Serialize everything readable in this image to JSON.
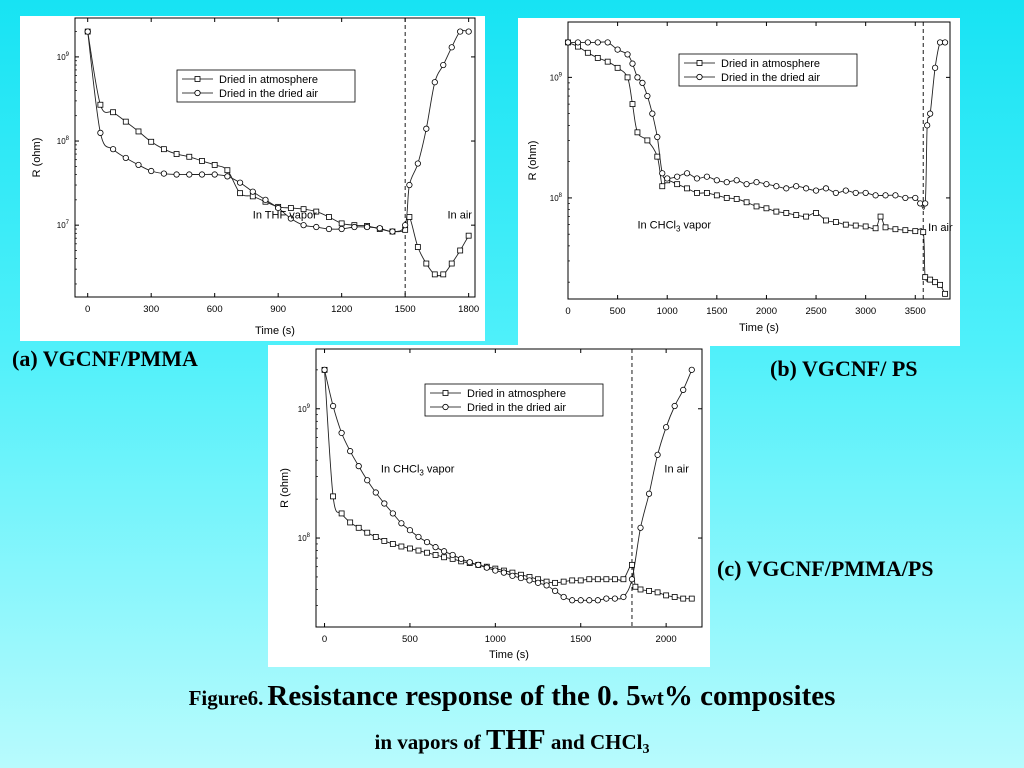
{
  "charts": {
    "a": {
      "label": "(a) VGCNF/PMMA"
    },
    "b": {
      "label": "(b) VGCNF/ PS"
    },
    "c": {
      "label": "(c) VGCNF/PMMA/PS"
    }
  },
  "caption": {
    "part1": "Figure6.",
    "part2": "Resistance response of the 0. 5",
    "part3": "wt",
    "part4": "% composites",
    "line2_part1": "in vapors of ",
    "line2_part2": "THF",
    "line2_part3": " and CHCl",
    "line2_sub": "3"
  },
  "chart_data": [
    {
      "type": "line",
      "id": "a",
      "title": "",
      "xlabel": "Time (s)",
      "ylabel": "R (ohm)",
      "y_scale": "log",
      "xlim": [
        -60,
        1830
      ],
      "ylim": [
        1400000.0,
        2900000000.0
      ],
      "xticks": [
        0,
        300,
        600,
        900,
        1200,
        1500,
        1800
      ],
      "yticks": [
        {
          "value": 10000000.0,
          "base": "10",
          "exp": "7"
        },
        {
          "value": 100000000.0,
          "base": "10",
          "exp": "8"
        },
        {
          "value": 1000000000.0,
          "base": "10",
          "exp": "9"
        }
      ],
      "vline": 1500,
      "annotations": [
        {
          "text": "In THF vapor",
          "x": 780,
          "y": 12000000.0
        },
        {
          "text": "In air",
          "x": 1700,
          "y": 12000000.0
        }
      ],
      "legend_position": "top-right",
      "series": [
        {
          "name": "Dried in atmosphere",
          "marker": "square",
          "x": [
            0,
            60,
            120,
            180,
            240,
            300,
            360,
            420,
            480,
            540,
            600,
            660,
            720,
            780,
            840,
            900,
            960,
            1020,
            1080,
            1140,
            1200,
            1260,
            1320,
            1380,
            1440,
            1500,
            1520,
            1560,
            1600,
            1640,
            1680,
            1720,
            1760,
            1800
          ],
          "y": [
            2000000000.0,
            270000000.0,
            220000000.0,
            170000000.0,
            130000000.0,
            98000000.0,
            80000000.0,
            70000000.0,
            65000000.0,
            58000000.0,
            52000000.0,
            45000000.0,
            24000000.0,
            22000000.0,
            19000000.0,
            16500000.0,
            16000000.0,
            15500000.0,
            14500000.0,
            12500000.0,
            10500000.0,
            10000000.0,
            9800000.0,
            9000000.0,
            8400000.0,
            8800000.0,
            12500000.0,
            5500000.0,
            3500000.0,
            2600000.0,
            2600000.0,
            3500000.0,
            5000000.0,
            7500000.0
          ]
        },
        {
          "name": "Dried in the dried air",
          "marker": "circle",
          "x": [
            0,
            60,
            120,
            180,
            240,
            300,
            360,
            420,
            480,
            540,
            600,
            660,
            720,
            780,
            840,
            900,
            960,
            1020,
            1080,
            1140,
            1200,
            1260,
            1320,
            1380,
            1440,
            1500,
            1520,
            1560,
            1600,
            1640,
            1680,
            1720,
            1760,
            1800
          ],
          "y": [
            2000000000.0,
            125000000.0,
            80000000.0,
            63000000.0,
            52000000.0,
            44000000.0,
            41000000.0,
            40000000.0,
            40000000.0,
            40000000.0,
            40000000.0,
            38000000.0,
            32000000.0,
            25000000.0,
            20000000.0,
            16000000.0,
            12000000.0,
            10000000.0,
            9500000.0,
            9000000.0,
            9000000.0,
            9500000.0,
            9500000.0,
            9200000.0,
            8400000.0,
            10000000.0,
            30000000.0,
            54000000.0,
            140000000.0,
            500000000.0,
            800000000.0,
            1300000000.0,
            2000000000.0,
            2000000000.0
          ]
        }
      ]
    },
    {
      "type": "line",
      "id": "b",
      "title": "",
      "xlabel": "Time (s)",
      "ylabel": "R (ohm)",
      "y_scale": "log",
      "xlim": [
        0,
        3850
      ],
      "ylim": [
        14500000.0,
        2880000000.0
      ],
      "xticks": [
        0,
        500,
        1000,
        1500,
        2000,
        2500,
        3000,
        3500
      ],
      "yticks": [
        {
          "value": 100000000.0,
          "base": "10",
          "exp": "8"
        },
        {
          "value": 1000000000.0,
          "base": "10",
          "exp": "9"
        }
      ],
      "vline": 3580,
      "annotations": [
        {
          "text": "In CHCl",
          "sub": "3",
          "after": " vapor",
          "x": 700,
          "y": 56000000.0
        },
        {
          "text": "In air",
          "x": 3630,
          "y": 53000000.0
        }
      ],
      "legend_position": "top-right",
      "series": [
        {
          "name": "Dried in atmosphere",
          "marker": "square",
          "x": [
            0,
            100,
            200,
            300,
            400,
            500,
            600,
            650,
            700,
            800,
            900,
            950,
            1000,
            1100,
            1200,
            1300,
            1400,
            1500,
            1600,
            1700,
            1800,
            1900,
            2000,
            2100,
            2200,
            2300,
            2400,
            2500,
            2600,
            2700,
            2800,
            2900,
            3000,
            3100,
            3150,
            3200,
            3300,
            3400,
            3500,
            3580,
            3600,
            3650,
            3700,
            3750,
            3800
          ],
          "y": [
            1950000000.0,
            1800000000.0,
            1600000000.0,
            1450000000.0,
            1350000000.0,
            1200000000.0,
            1000000000.0,
            600000000.0,
            350000000.0,
            300000000.0,
            220000000.0,
            125000000.0,
            140000000.0,
            130000000.0,
            120000000.0,
            110000000.0,
            110000000.0,
            105000000.0,
            100000000.0,
            98000000.0,
            92000000.0,
            85000000.0,
            82000000.0,
            77000000.0,
            75000000.0,
            72000000.0,
            70000000.0,
            75000000.0,
            65000000.0,
            63000000.0,
            60000000.0,
            59000000.0,
            58000000.0,
            56000000.0,
            70000000.0,
            57000000.0,
            55000000.0,
            54000000.0,
            53000000.0,
            52000000.0,
            22000000.0,
            21000000.0,
            20000000.0,
            19000000.0,
            16000000.0
          ]
        },
        {
          "name": "Dried in the dried air",
          "marker": "circle",
          "x": [
            0,
            100,
            200,
            300,
            400,
            500,
            600,
            650,
            700,
            750,
            800,
            850,
            900,
            950,
            1000,
            1100,
            1200,
            1300,
            1400,
            1500,
            1600,
            1700,
            1800,
            1900,
            2000,
            2100,
            2200,
            2300,
            2400,
            2500,
            2600,
            2700,
            2800,
            2900,
            3000,
            3100,
            3200,
            3300,
            3400,
            3500,
            3550,
            3600,
            3620,
            3650,
            3700,
            3750,
            3800
          ],
          "y": [
            1950000000.0,
            1950000000.0,
            1950000000.0,
            1950000000.0,
            1950000000.0,
            1700000000.0,
            1550000000.0,
            1300000000.0,
            1000000000.0,
            900000000.0,
            700000000.0,
            500000000.0,
            320000000.0,
            160000000.0,
            145000000.0,
            150000000.0,
            160000000.0,
            145000000.0,
            150000000.0,
            140000000.0,
            135000000.0,
            140000000.0,
            130000000.0,
            135000000.0,
            130000000.0,
            125000000.0,
            120000000.0,
            125000000.0,
            120000000.0,
            115000000.0,
            120000000.0,
            110000000.0,
            115000000.0,
            110000000.0,
            110000000.0,
            105000000.0,
            105000000.0,
            105000000.0,
            100000000.0,
            100000000.0,
            90000000.0,
            90000000.0,
            400000000.0,
            500000000.0,
            1200000000.0,
            1950000000.0,
            1950000000.0
          ]
        }
      ]
    },
    {
      "type": "line",
      "id": "c",
      "title": "",
      "xlabel": "Time (s)",
      "ylabel": "R (ohm)",
      "y_scale": "log",
      "xlim": [
        -50,
        2210
      ],
      "ylim": [
        20500000.0,
        2900000000.0
      ],
      "xticks": [
        0,
        500,
        1000,
        1500,
        2000
      ],
      "yticks": [
        {
          "value": 100000000.0,
          "base": "10",
          "exp": "8"
        },
        {
          "value": 1000000000.0,
          "base": "10",
          "exp": "9"
        }
      ],
      "vline": 1800,
      "annotations": [
        {
          "text": "In CHCl",
          "sub": "3",
          "after": " vapor",
          "x": 330,
          "y": 320000000.0
        },
        {
          "text": "In air",
          "x": 1990,
          "y": 320000000.0
        }
      ],
      "legend_position": "top-right",
      "series": [
        {
          "name": "Dried in atmosphere",
          "marker": "square",
          "x": [
            0,
            50,
            100,
            150,
            200,
            250,
            300,
            350,
            400,
            450,
            500,
            550,
            600,
            650,
            700,
            750,
            800,
            850,
            900,
            950,
            1000,
            1050,
            1100,
            1150,
            1200,
            1250,
            1300,
            1350,
            1400,
            1450,
            1500,
            1550,
            1600,
            1650,
            1700,
            1750,
            1800,
            1820,
            1850,
            1900,
            1950,
            2000,
            2050,
            2100,
            2150
          ],
          "y": [
            2000000000.0,
            210000000.0,
            155000000.0,
            132000000.0,
            120000000.0,
            110000000.0,
            102000000.0,
            95000000.0,
            90000000.0,
            86000000.0,
            83000000.0,
            80000000.0,
            77000000.0,
            74000000.0,
            71000000.0,
            69000000.0,
            66000000.0,
            64000000.0,
            62000000.0,
            60000000.0,
            58000000.0,
            56000000.0,
            54000000.0,
            52000000.0,
            50000000.0,
            48000000.0,
            46000000.0,
            45000000.0,
            46000000.0,
            47000000.0,
            47000000.0,
            48000000.0,
            48000000.0,
            48000000.0,
            48000000.0,
            48000000.0,
            62000000.0,
            42000000.0,
            40000000.0,
            39000000.0,
            38000000.0,
            36000000.0,
            35000000.0,
            34000000.0,
            34000000.0
          ]
        },
        {
          "name": "Dried in the dried air",
          "marker": "circle",
          "x": [
            0,
            50,
            100,
            150,
            200,
            250,
            300,
            350,
            400,
            450,
            500,
            550,
            600,
            650,
            700,
            750,
            800,
            850,
            900,
            950,
            1000,
            1050,
            1100,
            1150,
            1200,
            1250,
            1300,
            1350,
            1400,
            1450,
            1500,
            1550,
            1600,
            1650,
            1700,
            1750,
            1800,
            1850,
            1900,
            1950,
            2000,
            2050,
            2100,
            2150
          ],
          "y": [
            2000000000.0,
            1050000000.0,
            650000000.0,
            470000000.0,
            360000000.0,
            280000000.0,
            225000000.0,
            185000000.0,
            155000000.0,
            130000000.0,
            115000000.0,
            102000000.0,
            93000000.0,
            85000000.0,
            79000000.0,
            74000000.0,
            69000000.0,
            65000000.0,
            62000000.0,
            59000000.0,
            56000000.0,
            54000000.0,
            51000000.0,
            49000000.0,
            47000000.0,
            45000000.0,
            43000000.0,
            39000000.0,
            35000000.0,
            33000000.0,
            33000000.0,
            33000000.0,
            33000000.0,
            34000000.0,
            34000000.0,
            35000000.0,
            48000000.0,
            120000000.0,
            220000000.0,
            440000000.0,
            720000000.0,
            1050000000.0,
            1400000000.0,
            2000000000.0
          ]
        }
      ]
    }
  ]
}
